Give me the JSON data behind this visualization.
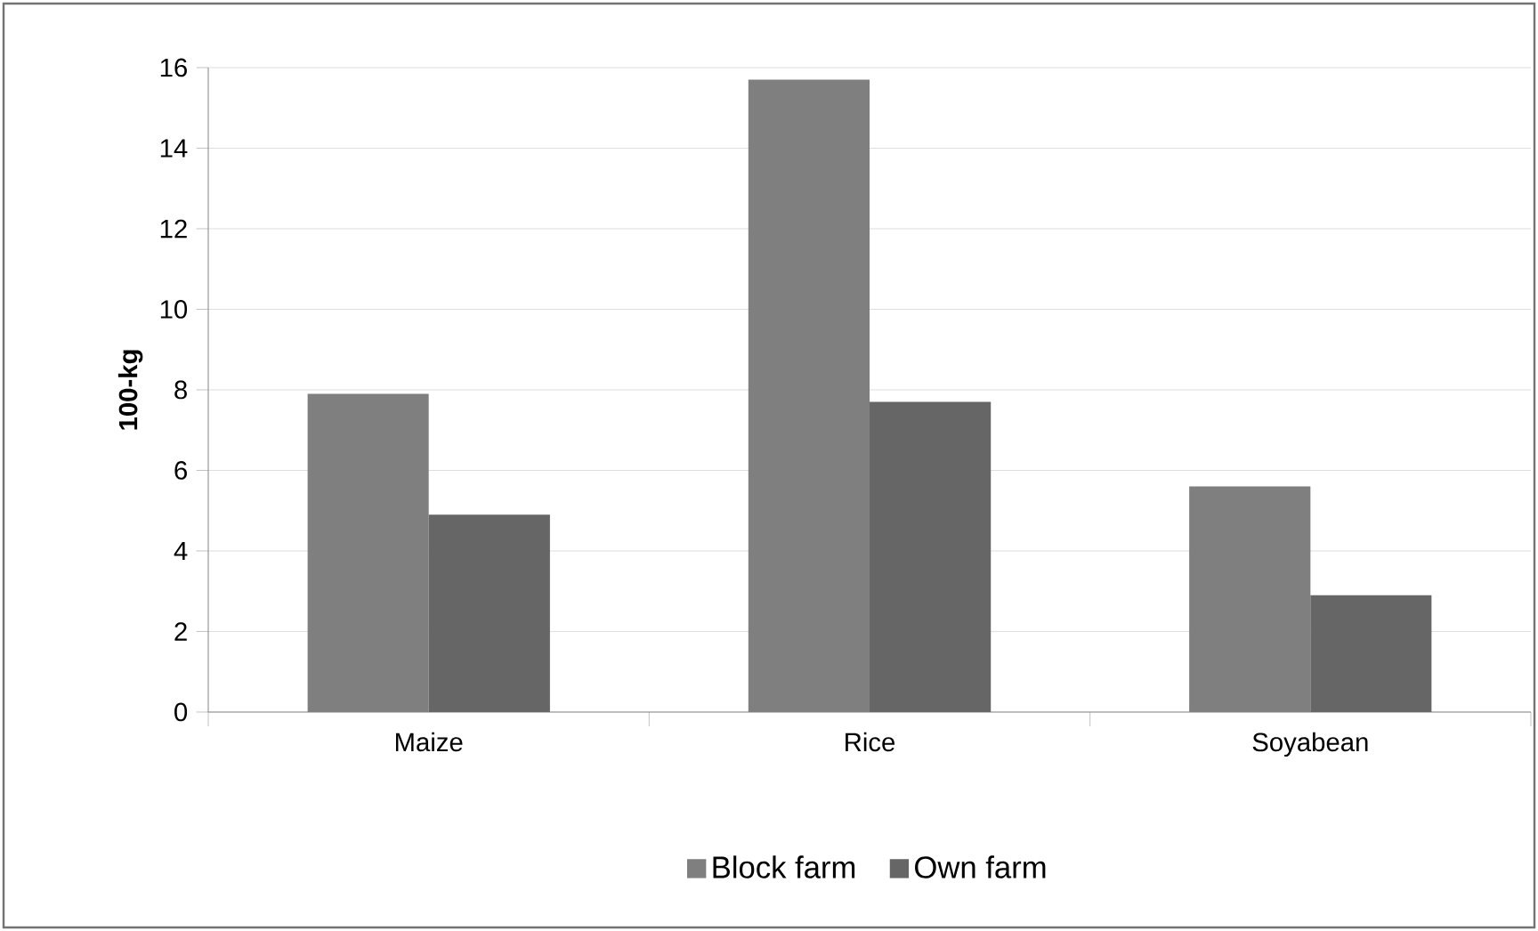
{
  "chart_data": {
    "type": "bar",
    "ylabel": "100-kg",
    "categories": [
      "Maize",
      "Rice",
      "Soyabean"
    ],
    "series": [
      {
        "name": "Block farm",
        "color": "#7f7f7f",
        "values": [
          7.9,
          15.7,
          5.6
        ]
      },
      {
        "name": "Own farm",
        "color": "#666666",
        "values": [
          4.9,
          7.7,
          2.9
        ]
      }
    ],
    "ylim": [
      0,
      16
    ],
    "yticks": [
      0,
      2,
      4,
      6,
      8,
      10,
      12,
      14,
      16
    ],
    "grid": "y",
    "legend": "bottom"
  }
}
